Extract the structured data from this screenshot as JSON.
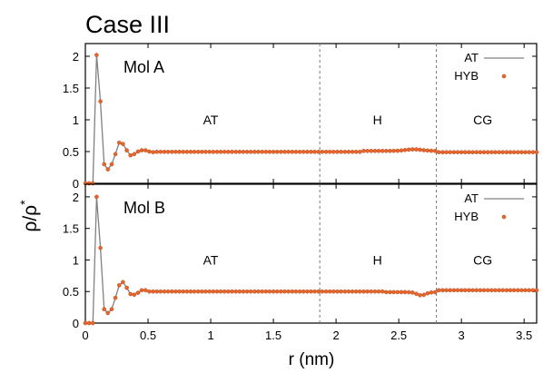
{
  "figure": {
    "title": "Case III",
    "ylabel": "ρ/ρ",
    "ylabel_sup": "*",
    "xlabel": "r (nm)",
    "colors": {
      "at_line": "#808080",
      "hyb_points": "#e8642a",
      "boundary": "#777777"
    }
  },
  "chart_data": [
    {
      "type": "line",
      "panel_label": "Mol A",
      "xlim": [
        0,
        3.6
      ],
      "ylim": [
        0,
        2.2
      ],
      "x_ticks": [
        "0",
        "0.5",
        "1",
        "1.5",
        "2",
        "2.5",
        "3",
        "3.5"
      ],
      "y_ticks": [
        "0",
        "0.5",
        "1",
        "1.5",
        "2"
      ],
      "boundaries": [
        1.87,
        2.8
      ],
      "region_labels": [
        {
          "text": "AT",
          "x": 1.0,
          "y": 1.0
        },
        {
          "text": "H",
          "x": 2.33,
          "y": 1.0
        },
        {
          "text": "CG",
          "x": 3.17,
          "y": 1.0
        }
      ],
      "legend": [
        "AT",
        "HYB"
      ],
      "legend_position": "top-right",
      "peaks": [
        [
          0.0,
          0
        ],
        [
          0.03,
          0
        ],
        [
          0.06,
          0
        ],
        [
          0.09,
          2.02
        ],
        [
          0.12,
          1.29
        ],
        [
          0.15,
          0.3
        ],
        [
          0.18,
          0.22
        ],
        [
          0.21,
          0.3
        ],
        [
          0.24,
          0.46
        ],
        [
          0.27,
          0.64
        ],
        [
          0.3,
          0.62
        ],
        [
          0.33,
          0.52
        ],
        [
          0.36,
          0.44
        ],
        [
          0.39,
          0.46
        ],
        [
          0.42,
          0.5
        ],
        [
          0.45,
          0.52
        ],
        [
          0.48,
          0.52
        ],
        [
          0.51,
          0.5
        ],
        [
          0.54,
          0.49
        ]
      ],
      "plateau": [
        {
          "from": 0.57,
          "to": 2.2,
          "value": 0.495
        },
        {
          "from": 2.2,
          "to": 2.8,
          "value": 0.51,
          "bump": 0.025,
          "bump_center": 2.62
        },
        {
          "from": 2.8,
          "to": 3.6,
          "value": 0.49
        }
      ],
      "series": [
        {
          "name": "AT"
        },
        {
          "name": "HYB"
        }
      ]
    },
    {
      "type": "line",
      "panel_label": "Mol B",
      "xlim": [
        0,
        3.6
      ],
      "ylim": [
        0,
        2.2
      ],
      "x_ticks": [
        "0",
        "0.5",
        "1",
        "1.5",
        "2",
        "2.5",
        "3",
        "3.5"
      ],
      "y_ticks": [
        "0",
        "0.5",
        "1",
        "1.5",
        "2"
      ],
      "boundaries": [
        1.87,
        2.8
      ],
      "region_labels": [
        {
          "text": "AT",
          "x": 1.0,
          "y": 1.0
        },
        {
          "text": "H",
          "x": 2.33,
          "y": 1.0
        },
        {
          "text": "CG",
          "x": 3.17,
          "y": 1.0
        }
      ],
      "legend": [
        "AT",
        "HYB"
      ],
      "legend_position": "top-right",
      "peaks": [
        [
          0.0,
          0
        ],
        [
          0.03,
          0
        ],
        [
          0.06,
          0
        ],
        [
          0.09,
          2.0
        ],
        [
          0.12,
          1.19
        ],
        [
          0.15,
          0.22
        ],
        [
          0.18,
          0.16
        ],
        [
          0.21,
          0.22
        ],
        [
          0.24,
          0.4
        ],
        [
          0.27,
          0.6
        ],
        [
          0.3,
          0.65
        ],
        [
          0.33,
          0.56
        ],
        [
          0.36,
          0.46
        ],
        [
          0.39,
          0.45
        ],
        [
          0.42,
          0.48
        ],
        [
          0.45,
          0.52
        ],
        [
          0.48,
          0.52
        ],
        [
          0.51,
          0.5
        ],
        [
          0.54,
          0.5
        ]
      ],
      "plateau": [
        {
          "from": 0.57,
          "to": 2.4,
          "value": 0.5
        },
        {
          "from": 2.4,
          "to": 2.8,
          "value": 0.49,
          "dip": 0.05,
          "dip_center": 2.68
        },
        {
          "from": 2.8,
          "to": 3.6,
          "value": 0.52
        }
      ],
      "series": [
        {
          "name": "AT"
        },
        {
          "name": "HYB"
        }
      ]
    }
  ]
}
